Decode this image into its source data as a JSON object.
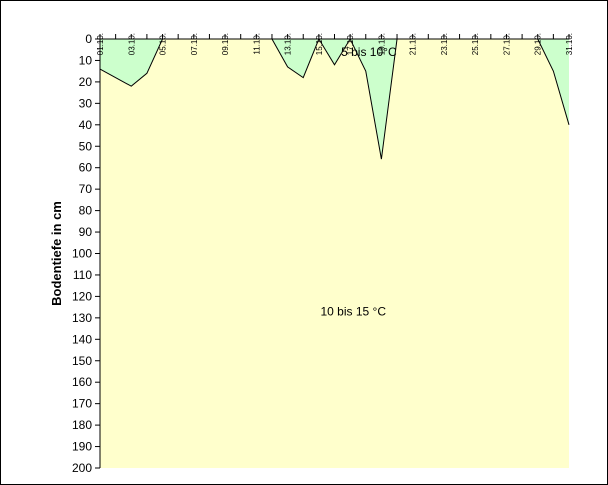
{
  "colors": {
    "plot_background": "#FFFFCC",
    "region_fill": "#CCFFCC",
    "line": "#000000"
  },
  "chart_data": {
    "type": "area",
    "title": "",
    "ylabel": "Bodentiefe in cm",
    "xlabel": "",
    "x_tick_labels": [
      "01.10.",
      "03.10.",
      "05.10.",
      "07.10.",
      "09.10.",
      "11.10.",
      "13.10.",
      "15.10.",
      "17.10.",
      "19.10.",
      "21.10.",
      "23.10.",
      "25.10.",
      "27.10.",
      "29.10.",
      "31.10."
    ],
    "y_ticks": [
      0,
      10,
      20,
      30,
      40,
      50,
      60,
      70,
      80,
      90,
      100,
      110,
      120,
      130,
      140,
      150,
      160,
      170,
      180,
      190,
      200
    ],
    "ylim": [
      0,
      200
    ],
    "y_inverted": true,
    "x_axis_position": "top",
    "day_range": [
      1,
      31
    ],
    "grid": false,
    "boundary_depth_series": {
      "days": [
        1,
        3,
        4,
        5,
        12,
        13,
        14,
        15,
        16,
        17,
        18,
        19,
        20,
        29,
        30,
        31
      ],
      "depth_cm": [
        14,
        22,
        16,
        0,
        0,
        13,
        18,
        0,
        12,
        0,
        15,
        56,
        0,
        0,
        15,
        40
      ]
    },
    "annotations": [
      {
        "text": "5 bis 10°C",
        "day": 18.2,
        "depth_cm": 6
      },
      {
        "text": "10 bis 15 °C",
        "day": 17.2,
        "depth_cm": 127
      }
    ]
  }
}
